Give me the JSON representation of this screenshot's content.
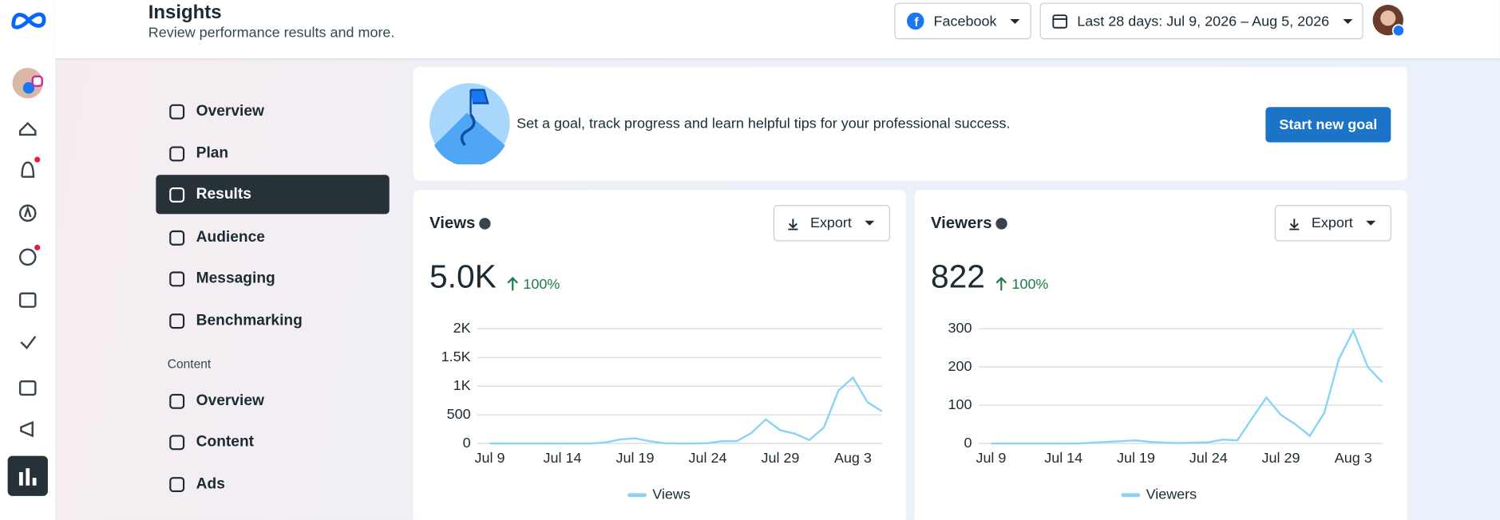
{
  "header": {
    "title": "Insights",
    "subtitle": "Review performance results and more.",
    "platform": "Facebook",
    "date_range": "Last 28 days: Jul 9, 2026 – Aug 5, 2026"
  },
  "nav": {
    "items": [
      "Overview",
      "Plan",
      "Results",
      "Audience",
      "Messaging",
      "Benchmarking"
    ],
    "section": "Content",
    "section_items": [
      "Overview",
      "Content",
      "Ads"
    ]
  },
  "goal": {
    "text": "Set a goal, track progress and learn helpful tips for your professional success.",
    "button": "Start new goal"
  },
  "chart_data": [
    {
      "type": "line",
      "title": "Views",
      "total": "5.0K",
      "change": "100%",
      "button": "Export",
      "categories": [
        "Jul 9",
        null,
        null,
        null,
        null,
        "Jul 14",
        null,
        null,
        null,
        null,
        "Jul 19",
        null,
        null,
        null,
        null,
        "Jul 24",
        null,
        null,
        null,
        null,
        "Jul 29",
        null,
        null,
        null,
        null,
        "Aug 3",
        null,
        null
      ],
      "series": [
        {
          "name": "Views",
          "color": "#8ad3f6",
          "values": [
            0,
            0,
            0,
            0,
            0,
            0,
            0,
            0,
            20,
            70,
            90,
            40,
            5,
            0,
            0,
            5,
            40,
            40,
            180,
            420,
            230,
            170,
            60,
            280,
            920,
            1150,
            720,
            560
          ]
        }
      ],
      "ylim": [
        0,
        2000
      ],
      "yticks": [
        0,
        500,
        {
          "value": 1000,
          "label": "1K"
        },
        {
          "value": 1500,
          "label": "1.5K"
        },
        {
          "value": 2000,
          "label": "2K"
        }
      ],
      "grid": true
    },
    {
      "type": "line",
      "title": "Viewers",
      "total": "822",
      "change": "100%",
      "button": "Export",
      "categories": [
        "Jul 9",
        null,
        null,
        null,
        null,
        "Jul 14",
        null,
        null,
        null,
        null,
        "Jul 19",
        null,
        null,
        null,
        null,
        "Jul 24",
        null,
        null,
        null,
        null,
        "Jul 29",
        null,
        null,
        null,
        null,
        "Aug 3",
        null,
        null
      ],
      "series": [
        {
          "name": "Viewers",
          "color": "#8ad3f6",
          "values": [
            0,
            0,
            0,
            0,
            0,
            0,
            0,
            2,
            4,
            6,
            8,
            4,
            2,
            1,
            2,
            3,
            10,
            8,
            65,
            120,
            75,
            50,
            20,
            80,
            220,
            295,
            200,
            160
          ]
        }
      ],
      "ylim": [
        0,
        300
      ],
      "yticks": [
        0,
        100,
        200,
        300
      ],
      "grid": true
    }
  ]
}
